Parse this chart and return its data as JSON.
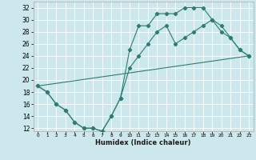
{
  "xlabel": "Humidex (Indice chaleur)",
  "bg_color": "#cce8ec",
  "grid_color": "#b0d8dc",
  "line_color": "#2e7d6e",
  "xlim": [
    -0.5,
    23.5
  ],
  "ylim": [
    11.5,
    33
  ],
  "xticks": [
    0,
    1,
    2,
    3,
    4,
    5,
    6,
    7,
    8,
    9,
    10,
    11,
    12,
    13,
    14,
    15,
    16,
    17,
    18,
    19,
    20,
    21,
    22,
    23
  ],
  "yticks": [
    12,
    14,
    16,
    18,
    20,
    22,
    24,
    26,
    28,
    30,
    32
  ],
  "line1_x": [
    0,
    1,
    2,
    3,
    4,
    5,
    6,
    7,
    8,
    9,
    10,
    11,
    12,
    13,
    14,
    15,
    16,
    17,
    18,
    19,
    20,
    21,
    22,
    23
  ],
  "line1_y": [
    19,
    18,
    16,
    15,
    13,
    12,
    12,
    11.5,
    14,
    17,
    25,
    29,
    29,
    31,
    31,
    31,
    32,
    32,
    32,
    30,
    28,
    27,
    25,
    24
  ],
  "line2_x": [
    0,
    1,
    2,
    3,
    4,
    5,
    6,
    7,
    8,
    9,
    10,
    11,
    12,
    13,
    14,
    15,
    16,
    17,
    18,
    19,
    20,
    21,
    22,
    23
  ],
  "line2_y": [
    19,
    18,
    16,
    15,
    13,
    12,
    12,
    11.5,
    14,
    17,
    22,
    24,
    26,
    28,
    29,
    26,
    27,
    28,
    29,
    30,
    29,
    27,
    25,
    24
  ],
  "line3_x": [
    0,
    23
  ],
  "line3_y": [
    19,
    24
  ]
}
